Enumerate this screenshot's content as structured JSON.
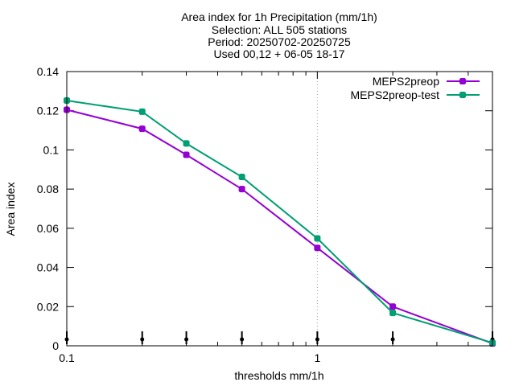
{
  "chart_data": {
    "type": "line",
    "title_lines": [
      "Area index  for 1h Precipitation (mm/1h)",
      "Selection: ALL    505 stations",
      "Period: 20250702-20250725",
      "Used 00,12 + 06-05 18-17"
    ],
    "xlabel": "thresholds mm/1h",
    "ylabel": "Area index",
    "xscale": "log",
    "xlim": [
      0.1,
      5
    ],
    "ylim": [
      0,
      0.14
    ],
    "xticks": [
      {
        "value": 0.1,
        "label": "0.1"
      },
      {
        "value": 1,
        "label": "1"
      }
    ],
    "yticks": [
      {
        "value": 0,
        "label": "0"
      },
      {
        "value": 0.02,
        "label": "0.02"
      },
      {
        "value": 0.04,
        "label": "0.04"
      },
      {
        "value": 0.06,
        "label": "0.06"
      },
      {
        "value": 0.08,
        "label": "0.08"
      },
      {
        "value": 0.1,
        "label": "0.1"
      },
      {
        "value": 0.12,
        "label": "0.12"
      },
      {
        "value": 0.14,
        "label": "0.14"
      }
    ],
    "grid": {
      "x": [
        1
      ],
      "y": [
        0.14
      ],
      "style": "dotted"
    },
    "threshold_markers": [
      0.1,
      0.2,
      0.3,
      0.5,
      1,
      2,
      5
    ],
    "legend_position": "top-right",
    "series": [
      {
        "name": "MEPS2preop",
        "color": "#9400d3",
        "x": [
          0.1,
          0.2,
          0.3,
          0.5,
          1,
          2,
          5
        ],
        "y": [
          0.1205,
          0.1108,
          0.0975,
          0.08,
          0.05,
          0.02,
          0.0012
        ]
      },
      {
        "name": "MEPS2preop-test",
        "color": "#009e73",
        "x": [
          0.1,
          0.2,
          0.3,
          0.5,
          1,
          2,
          5
        ],
        "y": [
          0.1252,
          0.1195,
          0.1033,
          0.0862,
          0.0548,
          0.0168,
          0.0015
        ]
      }
    ]
  }
}
